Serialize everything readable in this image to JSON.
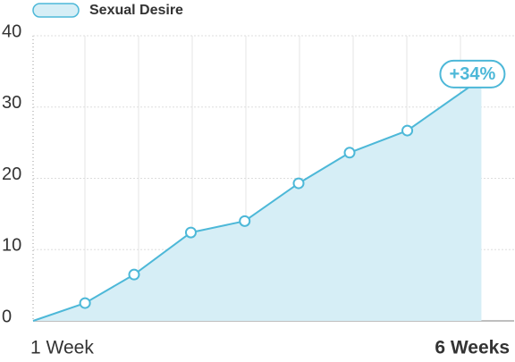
{
  "chart_data": {
    "type": "area",
    "series": [
      {
        "name": "Sexual Desire",
        "color": "#4db8d8",
        "fill": "#d6eef6",
        "x": [
          1,
          1.54,
          2.05,
          2.64,
          3.2,
          3.76,
          4.29,
          4.89,
          5.66
        ],
        "values": [
          0,
          2.5,
          6.5,
          12.4,
          14.0,
          19.3,
          23.6,
          26.7,
          34
        ]
      }
    ],
    "annotation": "+34%",
    "xlim": [
      1,
      6
    ],
    "xticks": [
      {
        "value": 1,
        "label": "1 Week"
      },
      {
        "value": 6,
        "label": "6 Weeks"
      }
    ],
    "ylim": [
      0,
      40
    ],
    "yticks": [
      0,
      10,
      20,
      30,
      40
    ],
    "grid": true
  }
}
